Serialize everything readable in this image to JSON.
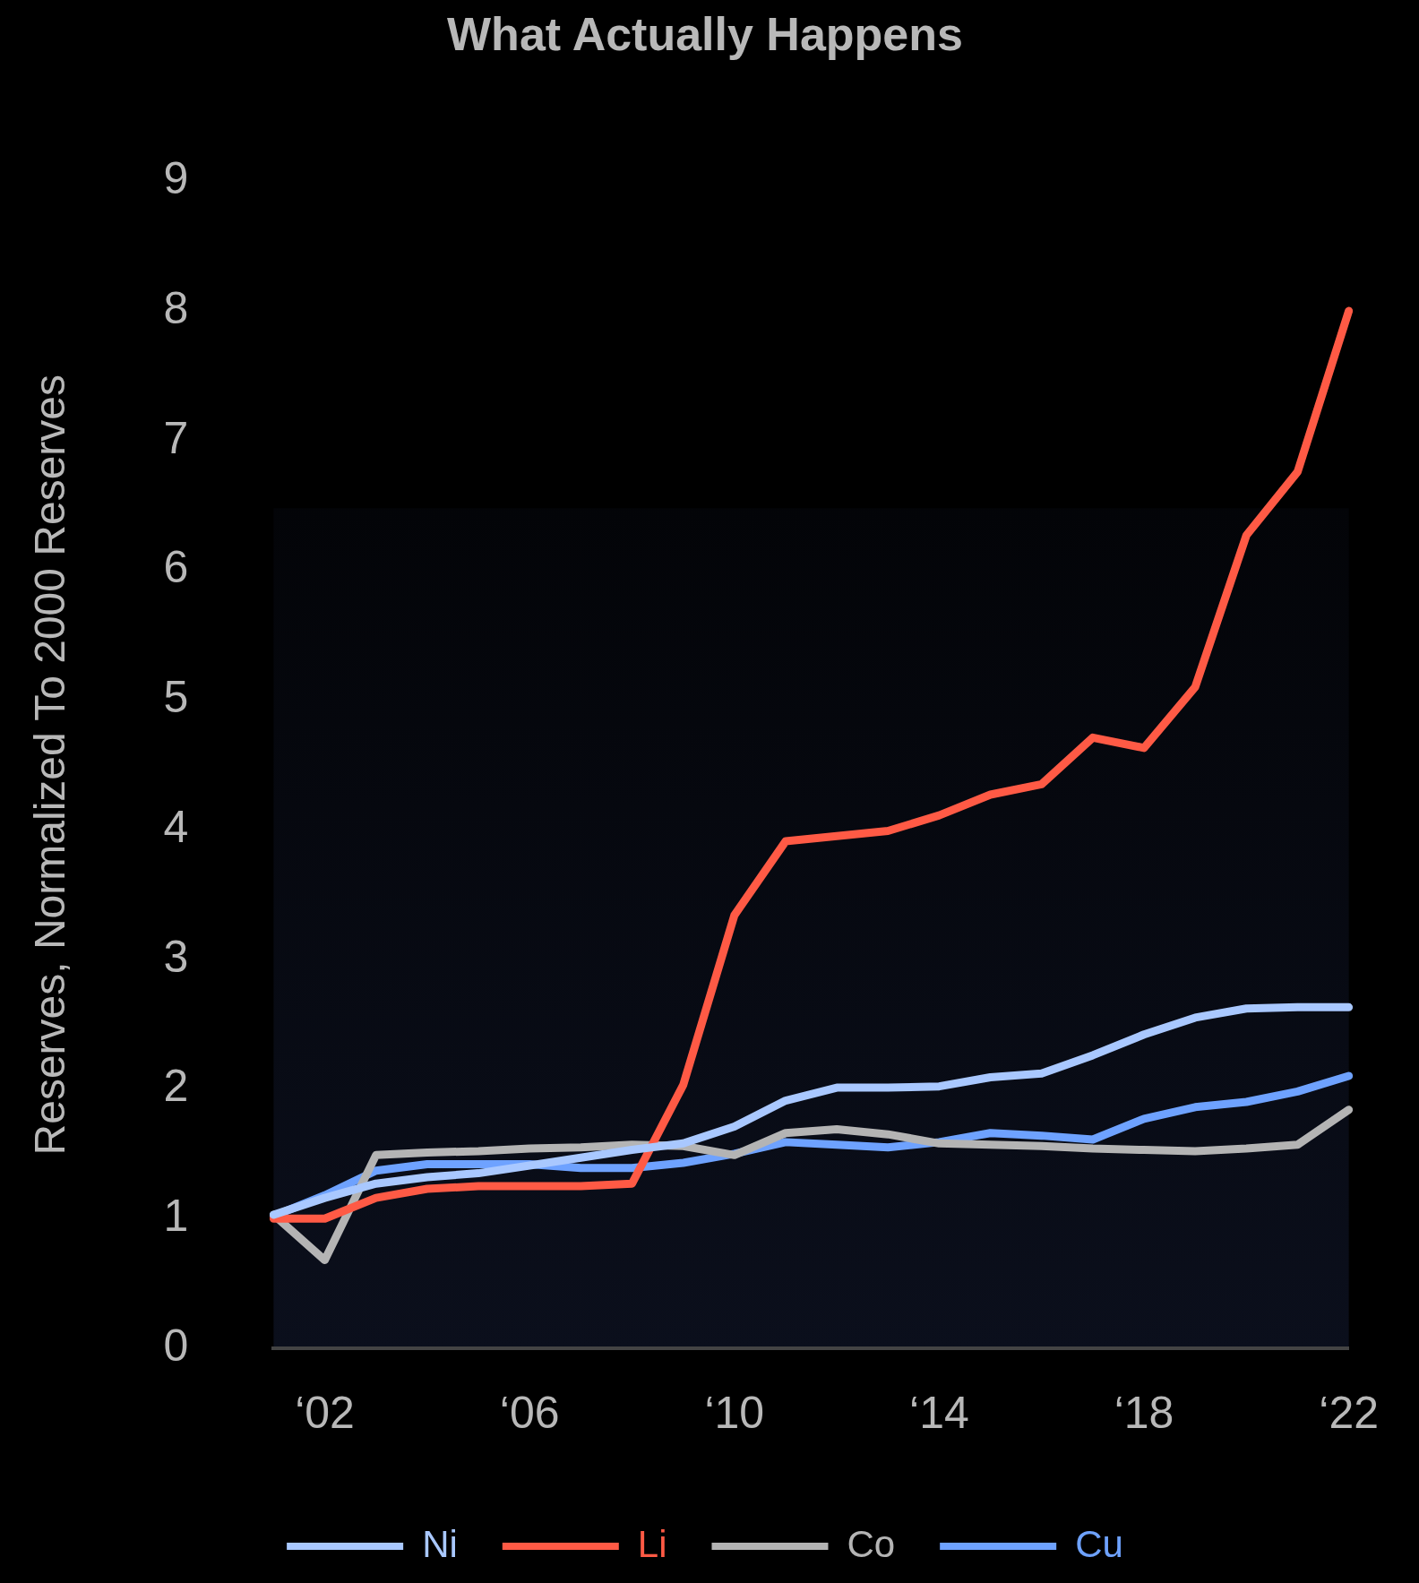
{
  "chart_data": {
    "type": "line",
    "title": "What Actually Happens",
    "ylabel": "Reserves, Normalized To 2000 Reserves",
    "categories": [
      null,
      "‘02",
      null,
      null,
      null,
      "‘06",
      null,
      null,
      null,
      "‘10",
      null,
      null,
      null,
      "‘14",
      null,
      null,
      null,
      "‘18",
      null,
      null,
      null,
      "‘22"
    ],
    "ylim": [
      0,
      9
    ],
    "yticks": [
      0,
      1,
      2,
      3,
      4,
      5,
      6,
      7,
      8,
      9
    ],
    "legend": "bottom",
    "line_style": "solid",
    "series": [
      {
        "name": "Ni",
        "color": "#a9c8ff",
        "values": [
          1.03,
          1.16,
          1.27,
          1.32,
          1.35,
          1.41,
          1.47,
          1.53,
          1.58,
          1.71,
          1.91,
          2.01,
          2.01,
          2.02,
          2.09,
          2.12,
          2.26,
          2.42,
          2.55,
          2.62,
          2.63,
          2.63
        ]
      },
      {
        "name": "Li",
        "color": "#ff5a45",
        "values": [
          1.0,
          1.0,
          1.16,
          1.23,
          1.25,
          1.25,
          1.25,
          1.27,
          2.03,
          3.34,
          3.91,
          3.95,
          3.99,
          4.11,
          4.27,
          4.35,
          4.71,
          4.63,
          5.1,
          6.27,
          6.76,
          8.0
        ]
      },
      {
        "name": "Co",
        "color": "#b4b4b4",
        "values": [
          1.03,
          0.68,
          1.49,
          1.51,
          1.52,
          1.54,
          1.55,
          1.57,
          1.56,
          1.49,
          1.66,
          1.69,
          1.65,
          1.58,
          1.57,
          1.56,
          1.54,
          1.53,
          1.52,
          1.54,
          1.57,
          1.84
        ]
      },
      {
        "name": "Cu",
        "color": "#6ea2ff",
        "values": [
          1.02,
          1.18,
          1.37,
          1.42,
          1.42,
          1.42,
          1.39,
          1.39,
          1.43,
          1.5,
          1.59,
          1.57,
          1.55,
          1.59,
          1.66,
          1.64,
          1.61,
          1.77,
          1.86,
          1.9,
          1.98,
          2.1
        ]
      }
    ]
  }
}
